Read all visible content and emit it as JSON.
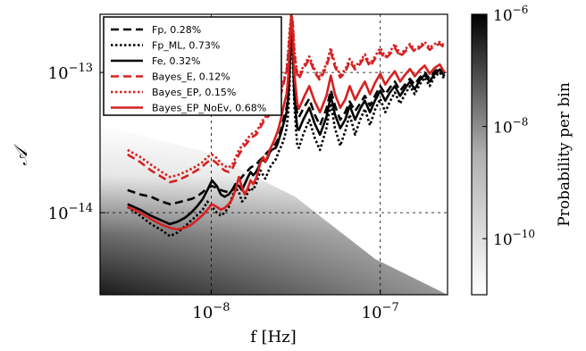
{
  "chart_data": {
    "type": "line",
    "xlabel": "f [Hz]",
    "ylabel": "𝒜",
    "x_scale": "log",
    "y_scale": "log",
    "xlim": [
      2.2e-09,
      2.5e-07
    ],
    "ylim": [
      2.6e-15,
      2.6e-13
    ],
    "x_ticks": [
      {
        "value": 1e-08,
        "base": "10",
        "exp": "−8"
      },
      {
        "value": 1e-07,
        "base": "10",
        "exp": "−7"
      }
    ],
    "y_ticks": [
      {
        "value": 1e-14,
        "base": "10",
        "exp": "−14"
      },
      {
        "value": 1e-13,
        "base": "10",
        "exp": "−13"
      }
    ],
    "grid": true,
    "legend_position": "top-left",
    "colorbar": {
      "label": "Probability per bin",
      "scale": "log",
      "range": [
        1e-11,
        1e-06
      ],
      "ticks": [
        {
          "value": 1e-06,
          "base": "10",
          "exp": "−6"
        },
        {
          "value": 1e-08,
          "base": "10",
          "exp": "−8"
        },
        {
          "value": 1e-10,
          "base": "10",
          "exp": "−10"
        }
      ]
    },
    "background_density": "grayscale probability map, dark at low frequency and low amplitude",
    "x": [
      3.2e-09,
      3.8e-09,
      4.4e-09,
      5.1e-09,
      5.7e-09,
      6.3e-09,
      7e-09,
      7.6e-09,
      8.2e-09,
      8.9e-09,
      9.5e-09,
      1.01e-08,
      1.08e-08,
      1.14e-08,
      1.2e-08,
      1.27e-08,
      1.33e-08,
      1.39e-08,
      1.46e-08,
      1.52e-08,
      1.58e-08,
      1.65e-08,
      1.71e-08,
      1.77e-08,
      1.84e-08,
      1.9e-08,
      1.96e-08,
      2.03e-08,
      2.09e-08,
      2.15e-08,
      2.22e-08,
      2.28e-08,
      2.34e-08,
      2.41e-08,
      2.47e-08,
      2.53e-08,
      2.6e-08,
      2.66e-08,
      2.72e-08,
      2.79e-08,
      2.85e-08,
      2.91e-08,
      2.98e-08,
      3.04e-08,
      3.1e-08,
      3.17e-08,
      3.23e-08,
      3.3e-08,
      3.5e-08,
      3.8e-08,
      4.1e-08,
      4.4e-08,
      4.8e-08,
      5.1e-08,
      5.4e-08,
      5.8e-08,
      6.2e-08,
      6.6e-08,
      7.1e-08,
      7.6e-08,
      8.1e-08,
      8.7e-08,
      9.3e-08,
      1e-07,
      1.07e-07,
      1.14e-07,
      1.22e-07,
      1.31e-07,
      1.4e-07,
      1.5e-07,
      1.6e-07,
      1.71e-07,
      1.83e-07,
      1.96e-07,
      2.1e-07,
      2.25e-07,
      2.4e-07
    ],
    "series": [
      {
        "name": "Fp, 0.28%",
        "color": "#000000",
        "dash": "dashed",
        "values": [
          1.45e-14,
          1.35e-14,
          1.3e-14,
          1.2e-14,
          1.15e-14,
          1.18e-14,
          1.22e-14,
          1.25e-14,
          1.3e-14,
          1.4e-14,
          1.5e-14,
          1.55e-14,
          1.5e-14,
          1.45e-14,
          1.42e-14,
          1.4e-14,
          1.45e-14,
          1.55e-14,
          1.7e-14,
          1.8e-14,
          1.9e-14,
          2e-14,
          2.1e-14,
          2.15e-14,
          2.2e-14,
          2.3e-14,
          2.4e-14,
          2.5e-14,
          2.6e-14,
          2.7e-14,
          2.8e-14,
          2.9e-14,
          3e-14,
          3.1e-14,
          3.3e-14,
          3.6e-14,
          4e-14,
          4.5e-14,
          5e-14,
          5.6e-14,
          7e-14,
          1.1e-13,
          2.6e-13,
          1.5e-13,
          8e-14,
          6e-14,
          5e-14,
          4.8e-14,
          5.5e-14,
          6.5e-14,
          5e-14,
          4.2e-14,
          5.5e-14,
          7.5e-14,
          5.8e-14,
          4.6e-14,
          5.2e-14,
          6.2e-14,
          5.3e-14,
          6e-14,
          6.8e-14,
          5.8e-14,
          6.8e-14,
          8e-14,
          7e-14,
          7.8e-14,
          8.6e-14,
          7.4e-14,
          8.2e-14,
          9e-14,
          8.2e-14,
          9.2e-14,
          1e-13,
          9e-14,
          1.02e-13,
          1.08e-13,
          9.8e-14
        ]
      },
      {
        "name": "Fp_ML, 0.73%",
        "color": "#000000",
        "dash": "dotted",
        "values": [
          1.1e-14,
          9.5e-15,
          8.3e-15,
          7.5e-15,
          6.8e-15,
          7.2e-15,
          8e-15,
          8.8e-15,
          9.5e-15,
          1.05e-14,
          1.2e-14,
          1.1e-14,
          1e-14,
          9.5e-15,
          1e-14,
          1.1e-14,
          1.3e-14,
          1.5e-14,
          1.4e-14,
          1.2e-14,
          1.25e-14,
          1.4e-14,
          1.5e-14,
          1.45e-14,
          1.6e-14,
          1.8e-14,
          2e-14,
          1.85e-14,
          1.75e-14,
          1.9e-14,
          2.1e-14,
          2.2e-14,
          2.3e-14,
          2.4e-14,
          2.6e-14,
          2.8e-14,
          3e-14,
          3.2e-14,
          3.5e-14,
          4e-14,
          5e-14,
          8e-14,
          2.6e-13,
          1.2e-13,
          6e-14,
          4e-14,
          3e-14,
          2.9e-14,
          3.6e-14,
          4.6e-14,
          3.4e-14,
          2.8e-14,
          4e-14,
          6e-14,
          4e-14,
          3e-14,
          3.8e-14,
          5e-14,
          3.6e-14,
          4.6e-14,
          5.5e-14,
          4.2e-14,
          5.4e-14,
          6.5e-14,
          5.2e-14,
          6.2e-14,
          7.2e-14,
          6e-14,
          7e-14,
          8e-14,
          7e-14,
          8.2e-14,
          9.2e-14,
          8e-14,
          9.4e-14,
          1e-13,
          9e-14
        ]
      },
      {
        "name": "Fe, 0.32%",
        "color": "#000000",
        "dash": "solid",
        "values": [
          1.15e-14,
          1.05e-14,
          9.5e-15,
          8.8e-15,
          8.3e-15,
          8.6e-15,
          9.2e-15,
          1e-14,
          1.1e-14,
          1.25e-14,
          1.45e-14,
          1.7e-14,
          1.55e-14,
          1.35e-14,
          1.3e-14,
          1.35e-14,
          1.45e-14,
          1.6e-14,
          1.55e-14,
          1.45e-14,
          1.6e-14,
          1.8e-14,
          1.95e-14,
          1.85e-14,
          1.95e-14,
          2.1e-14,
          2.3e-14,
          2.4e-14,
          2.3e-14,
          2.45e-14,
          2.7e-14,
          2.8e-14,
          2.85e-14,
          2.9e-14,
          3.1e-14,
          3.4e-14,
          3.8e-14,
          4.2e-14,
          4.6e-14,
          5.2e-14,
          6.5e-14,
          1e-13,
          2.6e-13,
          1.4e-13,
          7e-14,
          5e-14,
          4e-14,
          3.9e-14,
          4.6e-14,
          5.6e-14,
          4.3e-14,
          3.6e-14,
          4.8e-14,
          6.8e-14,
          5e-14,
          4e-14,
          4.6e-14,
          5.8e-14,
          4.6e-14,
          5.5e-14,
          6.3e-14,
          5.2e-14,
          6.3e-14,
          7.4e-14,
          6.3e-14,
          7.2e-14,
          8e-14,
          6.8e-14,
          7.7e-14,
          8.6e-14,
          7.6e-14,
          8.8e-14,
          9.6e-14,
          8.6e-14,
          9.8e-14,
          1.05e-13,
          9.4e-14
        ]
      },
      {
        "name": "Bayes_E, 0.12%",
        "color": "#d62020",
        "dash": "dashed",
        "values": [
          2.6e-14,
          2.3e-14,
          2e-14,
          1.8e-14,
          1.65e-14,
          1.7e-14,
          1.8e-14,
          1.9e-14,
          2e-14,
          2.15e-14,
          2.3e-14,
          2.4e-14,
          2.25e-14,
          2.1e-14,
          2e-14,
          1.95e-14,
          2.05e-14,
          2.3e-14,
          2.6e-14,
          2.8e-14,
          3e-14,
          3.2e-14,
          3.4e-14,
          3.5e-14,
          3.6e-14,
          3.8e-14,
          4.1e-14,
          4.4e-14,
          4.6e-14,
          4.8e-14,
          5e-14,
          5.2e-14,
          5.4e-14,
          5.6e-14,
          6e-14,
          6.5e-14,
          7.2e-14,
          8e-14,
          9e-14,
          1e-13,
          1.3e-13,
          1.8e-13,
          2.6e-13,
          2.2e-13,
          1.4e-13,
          1.1e-13,
          9.5e-14,
          9e-14,
          1.05e-13,
          1.25e-13,
          1e-13,
          8.8e-14,
          1.1e-13,
          1.4e-13,
          1.1e-13,
          9.2e-14,
          1e-13,
          1.2e-13,
          1.05e-13,
          1.15e-13,
          1.3e-13,
          1.1e-13,
          1.25e-13,
          1.4e-13,
          1.25e-13,
          1.35e-13,
          1.5e-13,
          1.3e-13,
          1.4e-13,
          1.55e-13,
          1.4e-13,
          1.5e-13,
          1.6e-13,
          1.45e-13,
          1.55e-13,
          1.6e-13,
          1.5e-13
        ]
      },
      {
        "name": "Bayes_EP, 0.15%",
        "color": "#d62020",
        "dash": "dotted",
        "values": [
          2.8e-14,
          2.5e-14,
          2.2e-14,
          1.95e-14,
          1.8e-14,
          1.85e-14,
          1.95e-14,
          2.05e-14,
          2.15e-14,
          2.3e-14,
          2.5e-14,
          2.6e-14,
          2.45e-14,
          2.25e-14,
          2.15e-14,
          2.1e-14,
          2.2e-14,
          2.45e-14,
          2.8e-14,
          3e-14,
          3.2e-14,
          3.4e-14,
          3.6e-14,
          3.7e-14,
          3.8e-14,
          4e-14,
          4.3e-14,
          4.6e-14,
          4.8e-14,
          5e-14,
          5.2e-14,
          5.4e-14,
          5.6e-14,
          5.8e-14,
          6.2e-14,
          6.8e-14,
          7.5e-14,
          8.4e-14,
          9.4e-14,
          1.05e-13,
          1.4e-13,
          2e-13,
          2.6e-13,
          2.3e-13,
          1.5e-13,
          1.15e-13,
          1e-13,
          9.5e-14,
          1.1e-13,
          1.3e-13,
          1.05e-13,
          9.2e-14,
          1.15e-13,
          1.5e-13,
          1.15e-13,
          9.6e-14,
          1.05e-13,
          1.25e-13,
          1.1e-13,
          1.2e-13,
          1.35e-13,
          1.15e-13,
          1.3e-13,
          1.5e-13,
          1.3e-13,
          1.4e-13,
          1.6e-13,
          1.35e-13,
          1.45e-13,
          1.6e-13,
          1.45e-13,
          1.55e-13,
          1.65e-13,
          1.5e-13,
          1.6e-13,
          1.65e-13,
          1.55e-13
        ]
      },
      {
        "name": "Bayes_EP_NoEv, 0.68%",
        "color": "#d62020",
        "dash": "solid",
        "values": [
          1.1e-14,
          1e-14,
          9e-15,
          8.2e-15,
          7.8e-15,
          7.6e-15,
          7.8e-15,
          8.2e-15,
          8.8e-15,
          9.6e-15,
          1.05e-14,
          1.15e-14,
          1.1e-14,
          1.05e-14,
          1.08e-14,
          1.15e-14,
          1.25e-14,
          1.45e-14,
          1.8e-14,
          1.5e-14,
          1.35e-14,
          1.5e-14,
          1.7e-14,
          1.6e-14,
          1.75e-14,
          2e-14,
          2.3e-14,
          2.5e-14,
          2.3e-14,
          2.5e-14,
          2.8e-14,
          3e-14,
          3.2e-14,
          3.5e-14,
          3.8e-14,
          4.2e-14,
          4.8e-14,
          5.5e-14,
          6.2e-14,
          7e-14,
          9e-14,
          1.5e-13,
          2.6e-13,
          1.9e-13,
          1e-13,
          7.5e-14,
          6e-14,
          5.5e-14,
          6.5e-14,
          8e-14,
          6.2e-14,
          5.2e-14,
          6.8e-14,
          9.5e-14,
          7e-14,
          5.6e-14,
          6.4e-14,
          8e-14,
          6.4e-14,
          7.5e-14,
          8.6e-14,
          7e-14,
          8.4e-14,
          9.8e-14,
          8.2e-14,
          9.2e-14,
          1.02e-13,
          8.6e-14,
          9.6e-14,
          1.06e-13,
          9.4e-14,
          1.04e-13,
          1.12e-13,
          9.8e-14,
          1.08e-13,
          1.14e-13,
          1e-13
        ]
      }
    ]
  }
}
